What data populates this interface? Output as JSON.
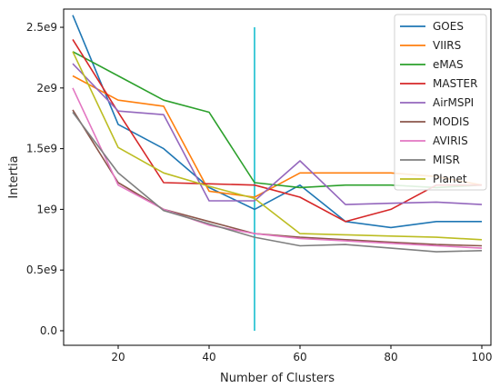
{
  "chart_data": {
    "type": "line",
    "title": "",
    "xlabel": "Number of Clusters",
    "ylabel": "Intertia",
    "x": [
      10,
      20,
      30,
      40,
      50,
      60,
      70,
      80,
      90,
      100
    ],
    "xlim": [
      8,
      102
    ],
    "ylim": [
      -0.12,
      2.65
    ],
    "y_unit_scale": 1000000000,
    "xticks": [
      20,
      40,
      60,
      80,
      100
    ],
    "xtick_labels": [
      "20",
      "40",
      "60",
      "80",
      "100"
    ],
    "yticks": [
      0.0,
      0.5,
      1.0,
      1.5,
      2.0,
      2.5
    ],
    "ytick_labels": [
      "0.0",
      "0.5e9",
      "1e9",
      "1.5e9",
      "2e9",
      "2.5e9"
    ],
    "grid": false,
    "legend_position": "top-right",
    "vline": {
      "x": 50,
      "ymin": 0.0,
      "ymax": 2.5,
      "color": "#17becf"
    },
    "series": [
      {
        "name": "GOES",
        "color": "#1f77b4",
        "values": [
          2.6,
          1.7,
          1.5,
          1.18,
          1.0,
          1.2,
          0.9,
          0.85,
          0.9,
          0.9
        ]
      },
      {
        "name": "VIIRS",
        "color": "#ff7f0e",
        "values": [
          2.1,
          1.9,
          1.85,
          1.15,
          1.1,
          1.3,
          1.3,
          1.3,
          1.27,
          1.2
        ]
      },
      {
        "name": "eMAS",
        "color": "#2ca02c",
        "values": [
          2.3,
          2.1,
          1.9,
          1.8,
          1.22,
          1.18,
          1.2,
          1.2,
          1.18,
          1.2
        ]
      },
      {
        "name": "MASTER",
        "color": "#d62728",
        "values": [
          2.4,
          1.8,
          1.22,
          1.21,
          1.2,
          1.1,
          0.9,
          1.0,
          1.2,
          1.2
        ]
      },
      {
        "name": "AirMSPI",
        "color": "#9467bd",
        "values": [
          2.2,
          1.81,
          1.78,
          1.07,
          1.07,
          1.4,
          1.04,
          1.05,
          1.06,
          1.04
        ]
      },
      {
        "name": "MODIS",
        "color": "#8c564b",
        "values": [
          1.82,
          1.22,
          1.0,
          0.9,
          0.8,
          0.77,
          0.75,
          0.73,
          0.71,
          0.7
        ]
      },
      {
        "name": "AVIRIS",
        "color": "#e377c2",
        "values": [
          2.0,
          1.2,
          1.0,
          0.87,
          0.8,
          0.76,
          0.74,
          0.72,
          0.7,
          0.68
        ]
      },
      {
        "name": "MISR",
        "color": "#7f7f7f",
        "values": [
          1.8,
          1.3,
          0.99,
          0.88,
          0.77,
          0.7,
          0.71,
          0.68,
          0.65,
          0.66
        ]
      },
      {
        "name": "Planet",
        "color": "#bcbd22",
        "values": [
          2.3,
          1.51,
          1.3,
          1.19,
          1.09,
          0.8,
          0.79,
          0.78,
          0.77,
          0.75
        ]
      }
    ]
  }
}
